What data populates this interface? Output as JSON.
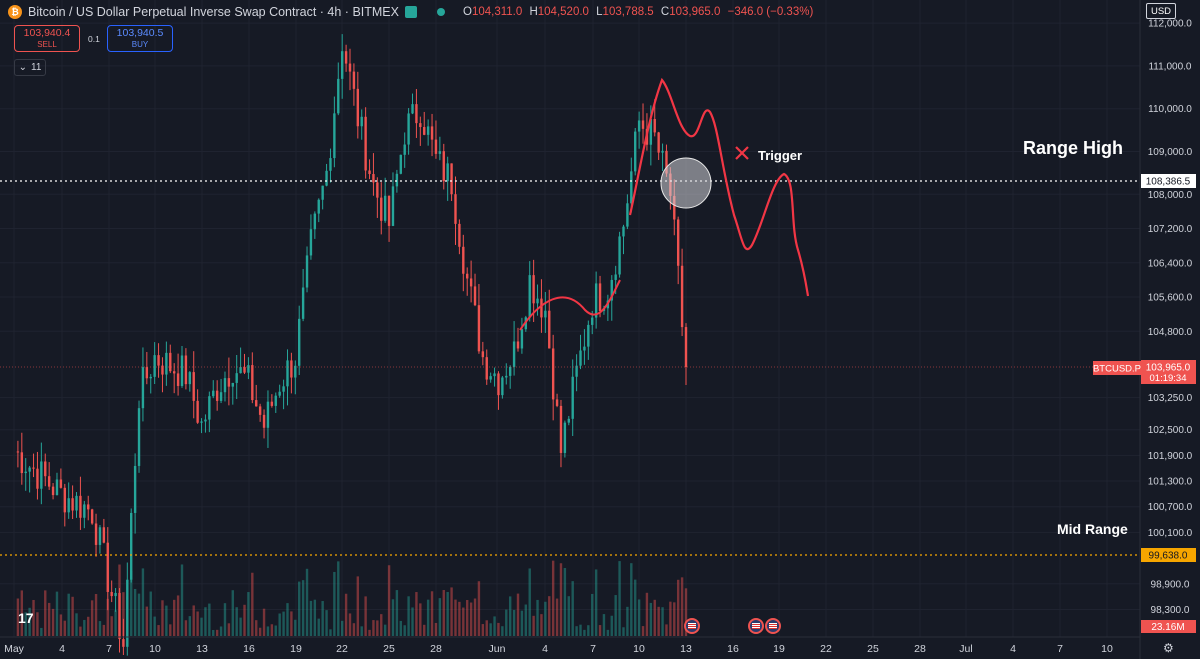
{
  "header": {
    "coin_icon": "bitcoin-icon",
    "symbol_title": "Bitcoin / US Dollar Perpetual Inverse Swap Contract · 4h · BITMEX",
    "ohlc": {
      "o_label": "O",
      "o_value": "104,311.0",
      "h_label": "H",
      "h_value": "104,520.0",
      "l_label": "L",
      "l_value": "103,788.5",
      "c_label": "C",
      "c_value": "103,965.0",
      "change": "−346.0 (−0.33%)"
    },
    "currency": "USD"
  },
  "trade": {
    "sell_price": "103,940.4",
    "sell_label": "SELL",
    "spread": "0.1",
    "buy_price": "103,940.5",
    "buy_label": "BUY"
  },
  "indicators_toggle": "11",
  "annotations": {
    "range_high": "Range High",
    "mid_range": "Mid Range",
    "trigger": "Trigger"
  },
  "colors": {
    "background": "#161a25",
    "up": "#26a69a",
    "down": "#ef5350",
    "range_high_line": "#ffffff",
    "mid_range_line": "#f7a600",
    "drawing": "#f23645",
    "current_price_tag": "#ef5350"
  },
  "chart_data": {
    "type": "candlestick",
    "symbol": "BTCUSD.P",
    "timeframe": "4h",
    "y_axis_ticks": [
      112000,
      111000,
      110000,
      109000,
      108000,
      107200,
      106400,
      105600,
      104800,
      103250,
      102500,
      101900,
      101300,
      100700,
      100100,
      98900,
      98300
    ],
    "y_axis_tick_labels": [
      "112,000.0",
      "111,000.0",
      "110,000.0",
      "109,000.0",
      "108,000.0",
      "107,200.0",
      "106,400.0",
      "105,600.0",
      "104,800.0",
      "103,250.0",
      "102,500.0",
      "101,900.0",
      "101,300.0",
      "100,700.0",
      "100,100.0",
      "98,900.0",
      "98,300.0"
    ],
    "x_axis_labels": [
      "May",
      "4",
      "7",
      "10",
      "13",
      "16",
      "19",
      "22",
      "25",
      "28",
      "Jun",
      "4",
      "7",
      "10",
      "13",
      "16",
      "19",
      "22",
      "25",
      "28",
      "Jul",
      "4",
      "7",
      "10"
    ],
    "price_levels": {
      "range_high": 108386.5,
      "range_high_label": "108,386.5",
      "mid_range": 99638.0,
      "mid_range_label": "99,638.0",
      "current": 103965.0,
      "current_label": "103,965.0",
      "countdown": "01:19:34"
    },
    "volume_label": "23.16M",
    "price_path": [
      [
        "May 1",
        102000
      ],
      [
        "May 4",
        101000
      ],
      [
        "May 6",
        100600
      ],
      [
        "May 8",
        97500
      ],
      [
        "May 9",
        103300
      ],
      [
        "May 10",
        104200
      ],
      [
        "May 12",
        103800
      ],
      [
        "May 13",
        102600
      ],
      [
        "May 14",
        103500
      ],
      [
        "May 15",
        104000
      ],
      [
        "May 16",
        103600
      ],
      [
        "May 17",
        102600
      ],
      [
        "May 18",
        103600
      ],
      [
        "May 19",
        104200
      ],
      [
        "May 20",
        106800
      ],
      [
        "May 21",
        108500
      ],
      [
        "May 22",
        111600
      ],
      [
        "May 23",
        109800
      ],
      [
        "May 24",
        108200
      ],
      [
        "May 25",
        107300
      ],
      [
        "May 26",
        109500
      ],
      [
        "May 27",
        110000
      ],
      [
        "May 28",
        108800
      ],
      [
        "May 29",
        108300
      ],
      [
        "May 30",
        106000
      ],
      [
        "May 31",
        104200
      ],
      [
        "Jun 1",
        103700
      ],
      [
        "Jun 2",
        104300
      ],
      [
        "Jun 3",
        106000
      ],
      [
        "Jun 4",
        105300
      ],
      [
        "Jun 5",
        102000
      ],
      [
        "Jun 6",
        103800
      ],
      [
        "Jun 7",
        105500
      ],
      [
        "Jun 8",
        105800
      ],
      [
        "Jun 9",
        107300
      ],
      [
        "Jun 10",
        109700
      ],
      [
        "Jun 11",
        109300
      ],
      [
        "Jun 12",
        108000
      ],
      [
        "Jun 13",
        103965
      ]
    ]
  }
}
